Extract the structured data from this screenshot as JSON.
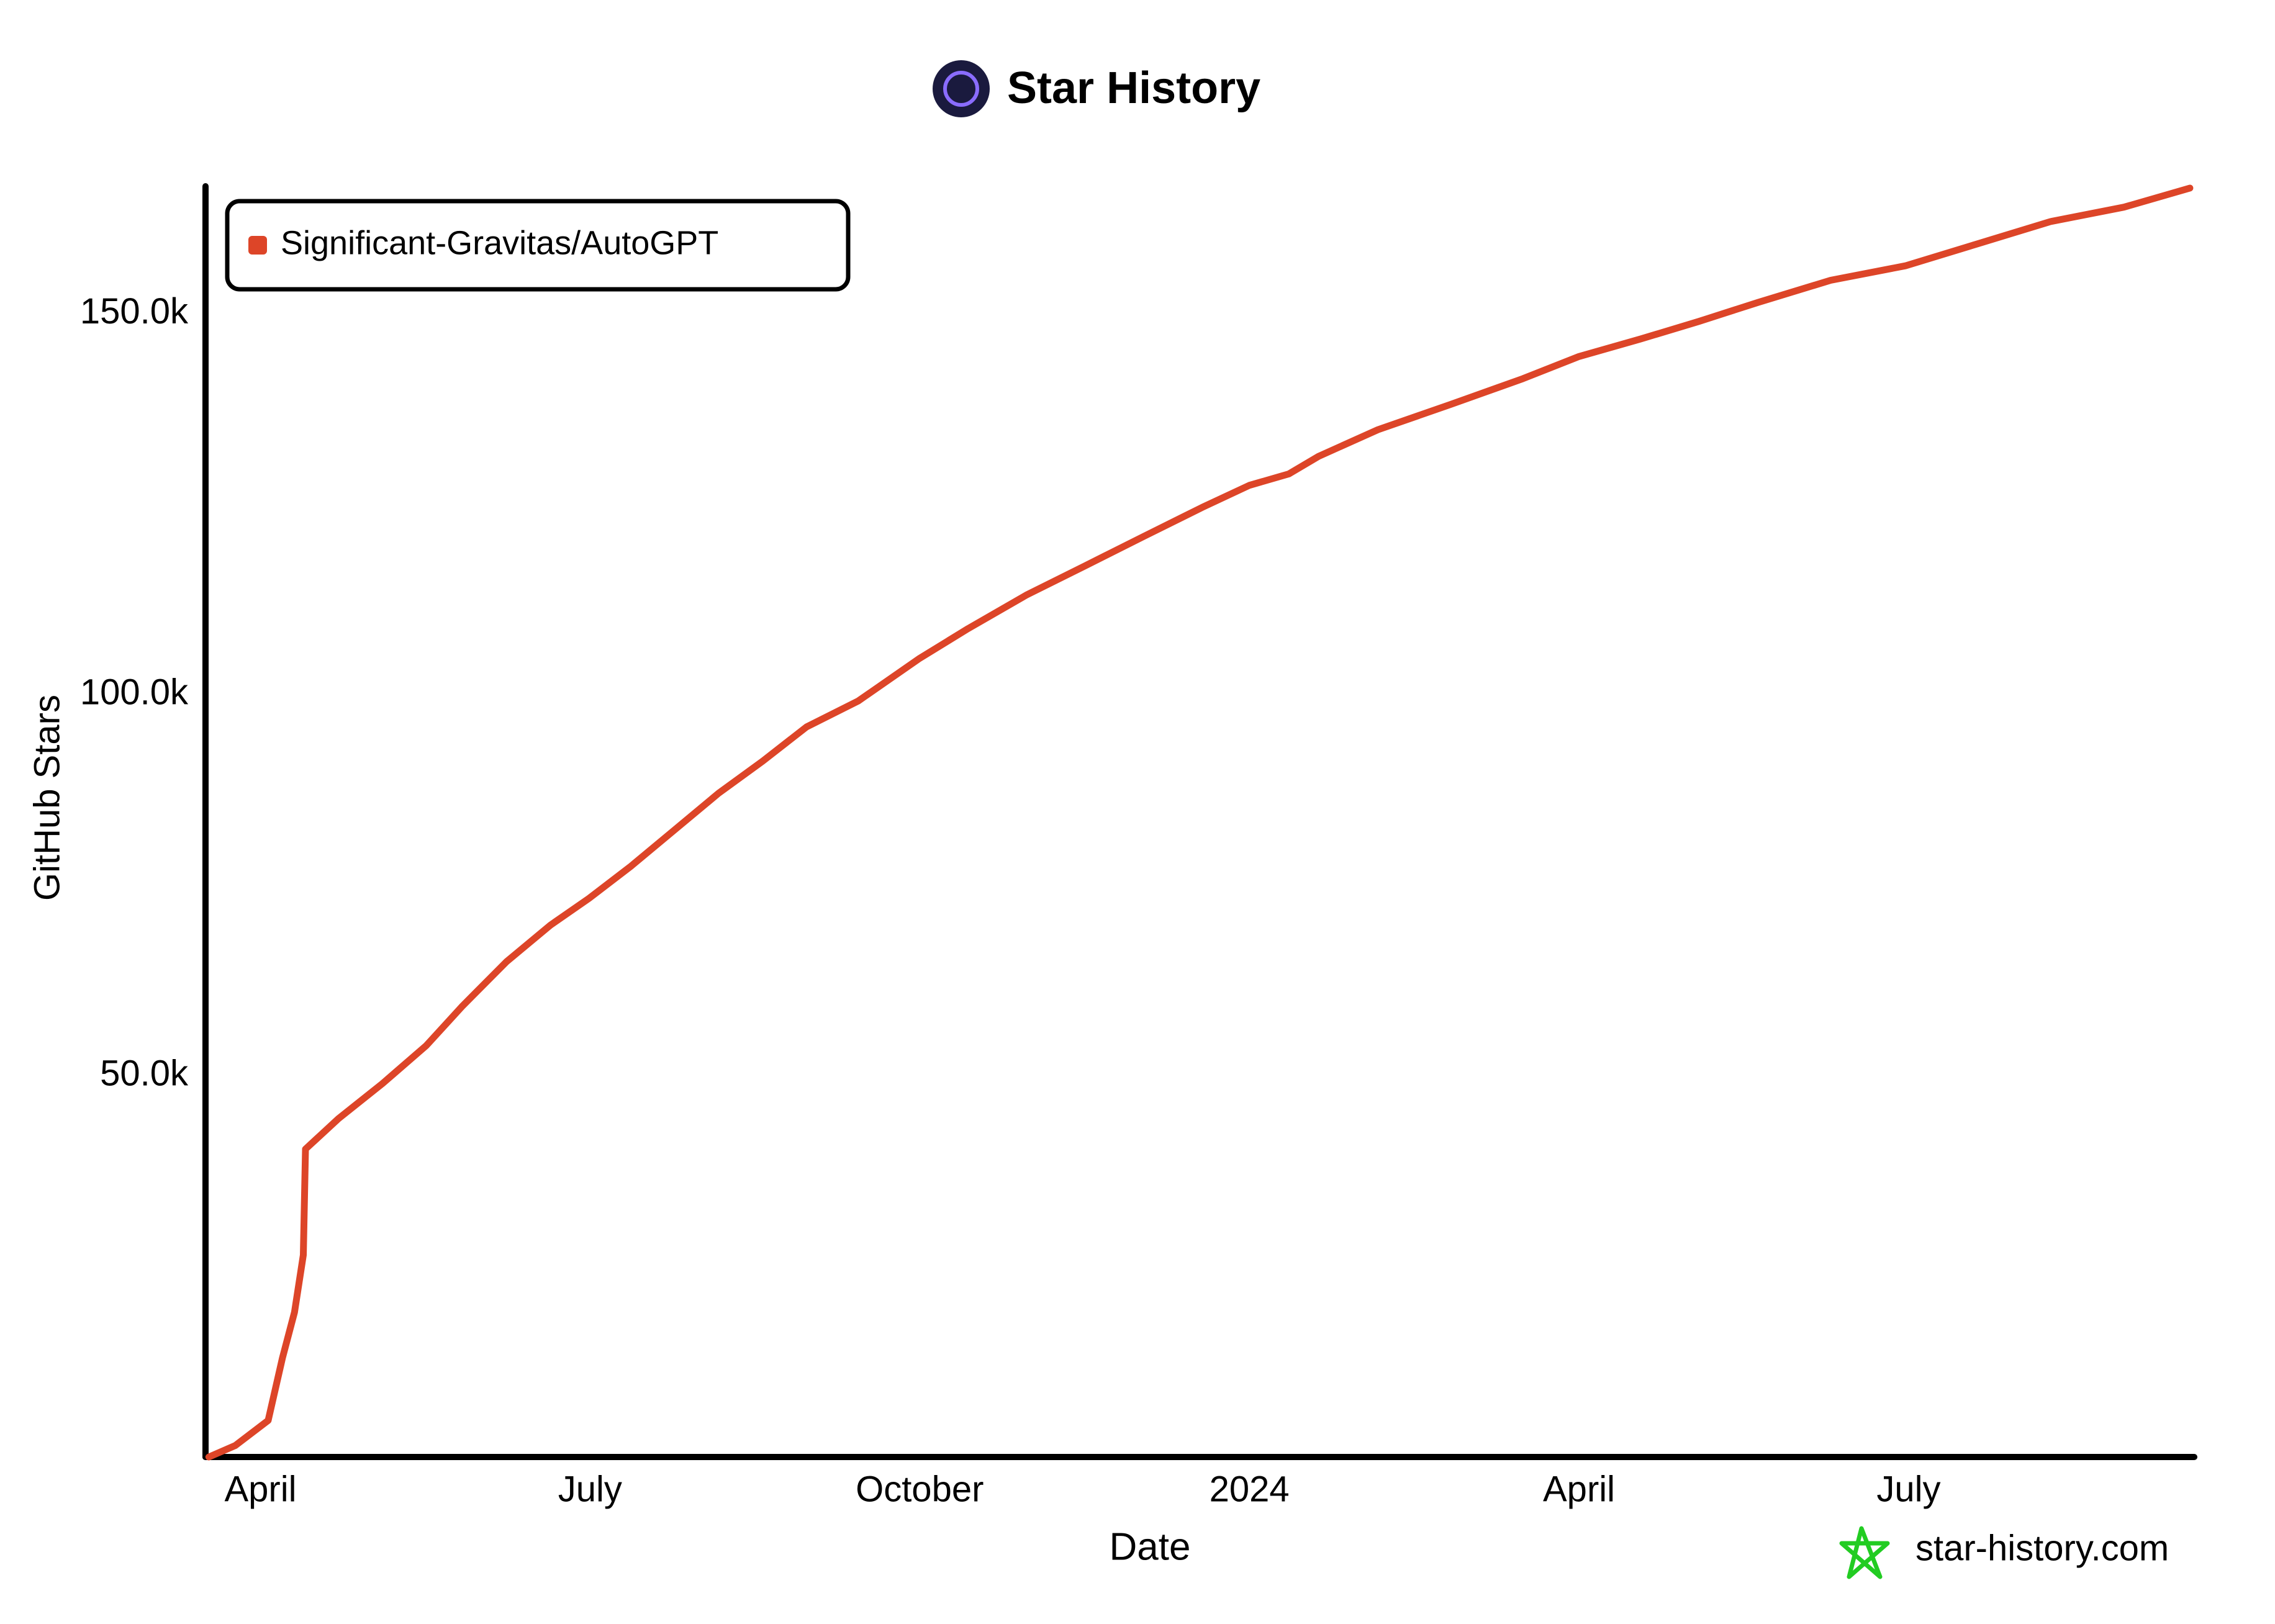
{
  "chart_data": {
    "type": "line",
    "title": "Star History",
    "x_label": "Date",
    "y_label": "GitHub Stars",
    "watermark": "star-history.com",
    "x": [
      2.53,
      2.77,
      3.07,
      3.2,
      3.31,
      3.39,
      3.41,
      3.71,
      4.11,
      4.51,
      4.84,
      5.24,
      5.64,
      5.99,
      6.37,
      6.77,
      7.17,
      7.57,
      7.97,
      8.44,
      9.0,
      9.44,
      9.97,
      10.5,
      11.04,
      11.57,
      12.0,
      12.36,
      12.63,
      13.17,
      13.83,
      14.49,
      15.0,
      15.56,
      16.09,
      16.63,
      17.29,
      17.97,
      18.63,
      19.29,
      19.96,
      20.56
    ],
    "series": [
      {
        "name": "Significant-Gravitas/AutoGPT",
        "color": "#dd4528",
        "values": [
          0,
          1500,
          4800,
          13000,
          19000,
          26500,
          40400,
          44400,
          49000,
          54000,
          59200,
          65000,
          69800,
          73300,
          77500,
          82300,
          87100,
          91300,
          95800,
          99200,
          104800,
          108700,
          113100,
          116900,
          120800,
          124600,
          127500,
          129000,
          131300,
          134800,
          138100,
          141500,
          144400,
          146700,
          149000,
          151500,
          154400,
          156300,
          159200,
          162100,
          164000,
          166500
        ]
      }
    ],
    "xlim": [
      2.5,
      20.6
    ],
    "xticks": [
      {
        "value": 3,
        "label": "April"
      },
      {
        "value": 6,
        "label": "July"
      },
      {
        "value": 9,
        "label": "October"
      },
      {
        "value": 12,
        "label": "2024"
      },
      {
        "value": 15,
        "label": "April"
      },
      {
        "value": 18,
        "label": "July"
      }
    ],
    "ylim": [
      0,
      166500
    ],
    "yticks": [
      {
        "value": 50000,
        "label": "50.0k"
      },
      {
        "value": 100000,
        "label": "100.0k"
      },
      {
        "value": 150000,
        "label": "150.0k"
      }
    ],
    "grid": false,
    "legend": "top-left"
  }
}
